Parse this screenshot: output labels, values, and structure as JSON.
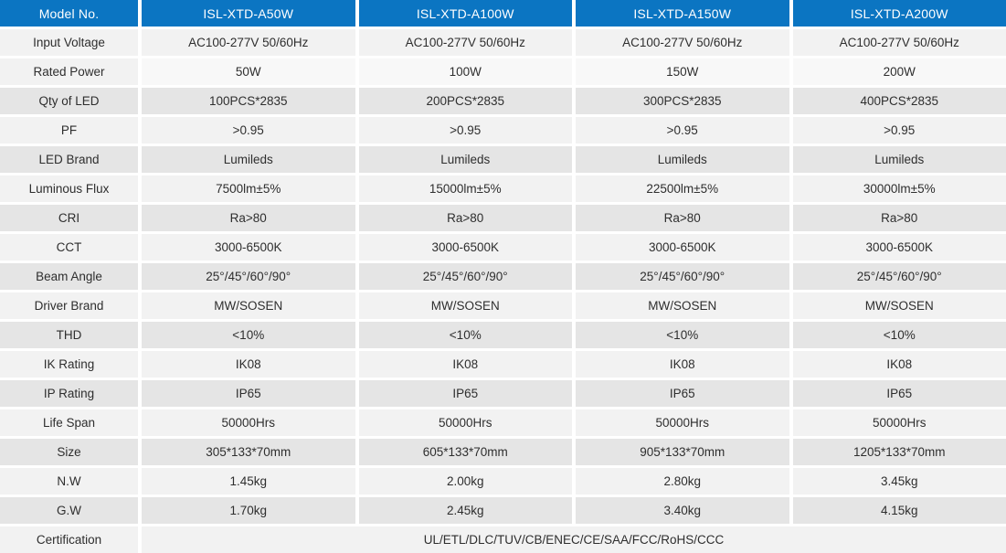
{
  "table": {
    "header": {
      "label": "Model No.",
      "models": [
        "ISL-XTD-A50W",
        "ISL-XTD-A100W",
        "ISL-XTD-A150W",
        "ISL-XTD-A200W"
      ]
    },
    "rows": [
      {
        "label": "Input Voltage",
        "values": [
          "AC100-277V 50/60Hz",
          "AC100-277V 50/60Hz",
          "AC100-277V 50/60Hz",
          "AC100-277V 50/60Hz"
        ]
      },
      {
        "label": "Rated Power",
        "values": [
          "50W",
          "100W",
          "150W",
          "200W"
        ]
      },
      {
        "label": "Qty of LED",
        "values": [
          "100PCS*2835",
          "200PCS*2835",
          "300PCS*2835",
          "400PCS*2835"
        ]
      },
      {
        "label": "PF",
        "values": [
          ">0.95",
          ">0.95",
          ">0.95",
          ">0.95"
        ]
      },
      {
        "label": "LED Brand",
        "values": [
          "Lumileds",
          "Lumileds",
          "Lumileds",
          "Lumileds"
        ]
      },
      {
        "label": "Luminous Flux",
        "values": [
          "7500lm±5%",
          "15000lm±5%",
          "22500lm±5%",
          "30000lm±5%"
        ]
      },
      {
        "label": "CRI",
        "values": [
          "Ra>80",
          "Ra>80",
          "Ra>80",
          "Ra>80"
        ]
      },
      {
        "label": "CCT",
        "values": [
          "3000-6500K",
          "3000-6500K",
          "3000-6500K",
          "3000-6500K"
        ]
      },
      {
        "label": "Beam Angle",
        "values": [
          "25°/45°/60°/90°",
          "25°/45°/60°/90°",
          "25°/45°/60°/90°",
          "25°/45°/60°/90°"
        ]
      },
      {
        "label": "Driver Brand",
        "values": [
          "MW/SOSEN",
          "MW/SOSEN",
          "MW/SOSEN",
          "MW/SOSEN"
        ]
      },
      {
        "label": "THD",
        "values": [
          "<10%",
          "<10%",
          "<10%",
          "<10%"
        ]
      },
      {
        "label": "IK Rating",
        "values": [
          "IK08",
          "IK08",
          "IK08",
          "IK08"
        ]
      },
      {
        "label": "IP Rating",
        "values": [
          "IP65",
          "IP65",
          "IP65",
          "IP65"
        ]
      },
      {
        "label": "Life Span",
        "values": [
          "50000Hrs",
          "50000Hrs",
          "50000Hrs",
          "50000Hrs"
        ]
      },
      {
        "label": "Size",
        "values": [
          "305*133*70mm",
          "605*133*70mm",
          "905*133*70mm",
          "1205*133*70mm"
        ]
      },
      {
        "label": "N.W",
        "values": [
          "1.45kg",
          "2.00kg",
          "2.80kg",
          "3.45kg"
        ]
      },
      {
        "label": "G.W",
        "values": [
          "1.70kg",
          "2.45kg",
          "3.40kg",
          "4.15kg"
        ]
      },
      {
        "label": "Certification",
        "values": [
          "UL/ETL/DLC/TUV/CB/ENEC/CE/SAA/FCC/RoHS/CCC"
        ],
        "merged": true
      }
    ],
    "colors": {
      "header_bg": "#0b75c2",
      "header_text": "#ffffff",
      "row_light": "#f2f2f2",
      "row_dark": "#e5e5e5",
      "row_lighter": "#f8f8f8",
      "body_text": "#2e2e2e"
    }
  }
}
